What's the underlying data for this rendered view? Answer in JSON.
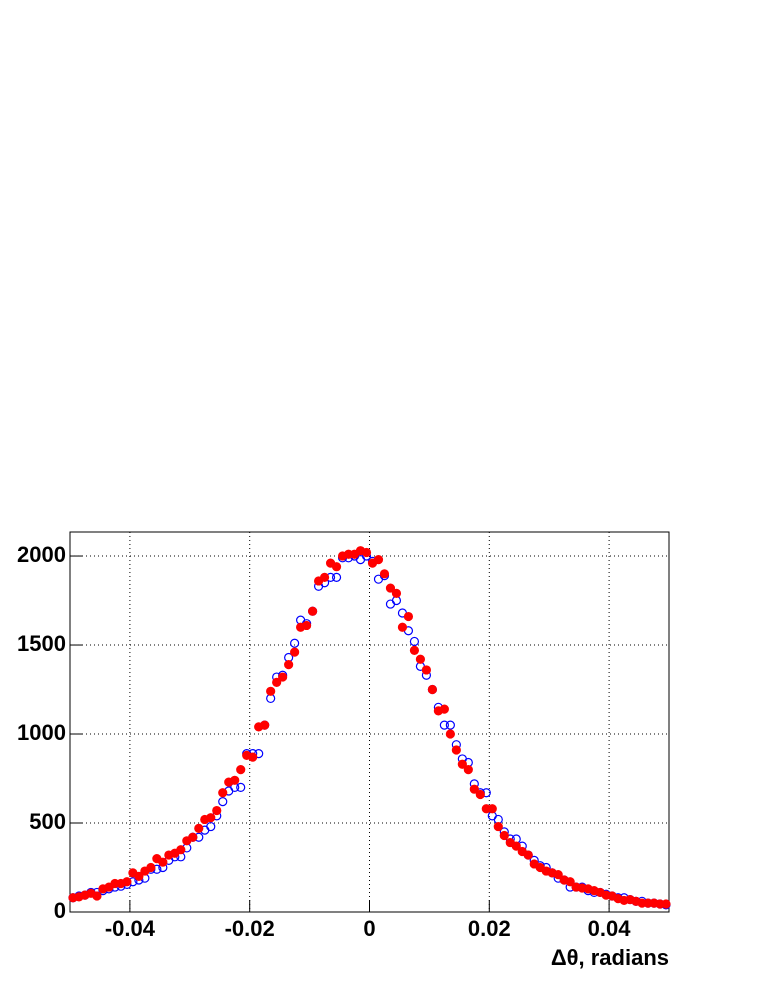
{
  "chart_data": {
    "type": "scatter",
    "x_label": "Δθ, radians",
    "x": [
      -0.0495,
      -0.0485,
      -0.0475,
      -0.0465,
      -0.0455,
      -0.0445,
      -0.0435,
      -0.0425,
      -0.0415,
      -0.0405,
      -0.0395,
      -0.0385,
      -0.0375,
      -0.0365,
      -0.0355,
      -0.0345,
      -0.0335,
      -0.0325,
      -0.0315,
      -0.0305,
      -0.0295,
      -0.0285,
      -0.0275,
      -0.0265,
      -0.0255,
      -0.0245,
      -0.0235,
      -0.0225,
      -0.0215,
      -0.0205,
      -0.0195,
      -0.0185,
      -0.0175,
      -0.0165,
      -0.0155,
      -0.0145,
      -0.0135,
      -0.0125,
      -0.0115,
      -0.0105,
      -0.0095,
      -0.0085,
      -0.0075,
      -0.0065,
      -0.0055,
      -0.0045,
      -0.0035,
      -0.0025,
      -0.0015,
      -0.0005,
      0.0005,
      0.0015,
      0.0025,
      0.0035,
      0.0045,
      0.0055,
      0.0065,
      0.0075,
      0.0085,
      0.0095,
      0.0105,
      0.0115,
      0.0125,
      0.0135,
      0.0145,
      0.0155,
      0.0165,
      0.0175,
      0.0185,
      0.0195,
      0.0205,
      0.0215,
      0.0225,
      0.0235,
      0.0245,
      0.0255,
      0.0265,
      0.0275,
      0.0285,
      0.0295,
      0.0305,
      0.0315,
      0.0325,
      0.0335,
      0.0345,
      0.0355,
      0.0365,
      0.0375,
      0.0385,
      0.0395,
      0.0405,
      0.0415,
      0.0425,
      0.0435,
      0.0445,
      0.0455,
      0.0465,
      0.0475,
      0.0485,
      0.0495
    ],
    "series": [
      {
        "color": "#ff0000",
        "filled": true,
        "values": [
          80,
          85,
          95,
          105,
          90,
          130,
          140,
          160,
          160,
          170,
          220,
          200,
          230,
          250,
          300,
          280,
          320,
          330,
          350,
          400,
          420,
          470,
          520,
          530,
          570,
          670,
          730,
          740,
          800,
          880,
          870,
          1040,
          1050,
          1240,
          1290,
          1320,
          1390,
          1460,
          1600,
          1610,
          1690,
          1860,
          1880,
          1960,
          1940,
          2000,
          2010,
          2010,
          2030,
          2020,
          1960,
          1980,
          1900,
          1820,
          1790,
          1600,
          1660,
          1470,
          1420,
          1360,
          1250,
          1130,
          1140,
          1000,
          910,
          830,
          800,
          690,
          660,
          580,
          580,
          480,
          430,
          390,
          370,
          340,
          320,
          270,
          250,
          230,
          220,
          210,
          180,
          170,
          140,
          135,
          130,
          120,
          110,
          95,
          90,
          75,
          65,
          70,
          60,
          50,
          50,
          50,
          45,
          45
        ]
      },
      {
        "color": "#0000ff",
        "filled": false,
        "values": [
          80,
          90,
          95,
          110,
          110,
          120,
          130,
          140,
          145,
          155,
          170,
          180,
          190,
          240,
          240,
          250,
          290,
          310,
          310,
          360,
          420,
          420,
          460,
          480,
          540,
          620,
          680,
          700,
          700,
          890,
          890,
          890,
          1050,
          1200,
          1320,
          1330,
          1430,
          1510,
          1640,
          1620,
          1690,
          1830,
          1850,
          1880,
          1880,
          1990,
          1990,
          2000,
          1980,
          2000,
          1970,
          1870,
          1890,
          1730,
          1750,
          1680,
          1580,
          1520,
          1380,
          1330,
          1250,
          1150,
          1050,
          1050,
          940,
          860,
          840,
          720,
          670,
          670,
          540,
          520,
          450,
          410,
          410,
          370,
          320,
          290,
          260,
          250,
          220,
          190,
          180,
          140,
          140,
          140,
          120,
          110,
          110,
          100,
          90,
          80,
          80,
          70,
          60,
          60,
          50,
          50,
          45,
          40
        ]
      }
    ],
    "xlim": [
      -0.05,
      0.05
    ],
    "xticks": [
      -0.04,
      -0.02,
      0,
      0.02,
      0.04
    ],
    "ylim": [
      0,
      2135
    ],
    "yticks": [
      0,
      500,
      1000,
      1500,
      2000
    ],
    "grid": true
  }
}
